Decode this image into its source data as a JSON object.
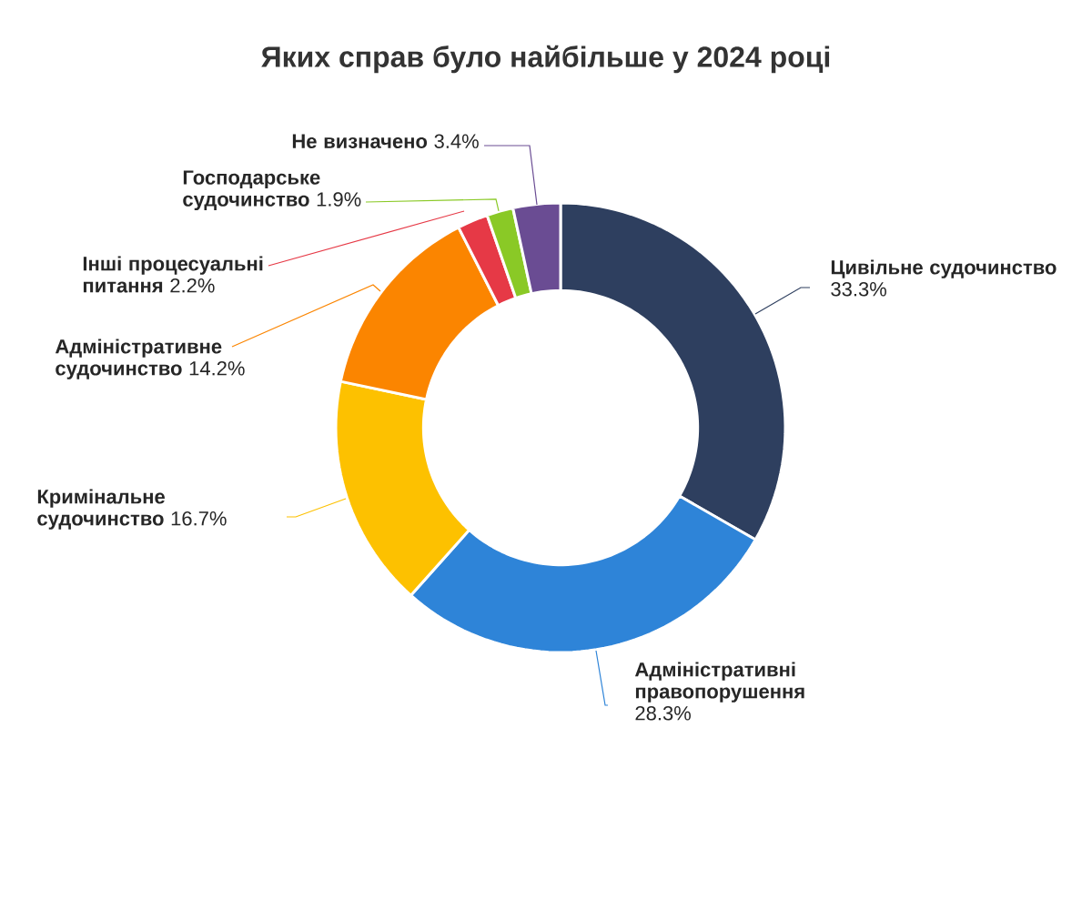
{
  "chart_data": {
    "type": "donut",
    "title": "Яких справ було найбільше у 2024 році",
    "categories": [
      "Цивільне судочинство",
      "Адміністративні правопорушення",
      "Кримінальне судочинство",
      "Адміністративне судочинство",
      "Інші процесуальні питання",
      "Господарське судочинство",
      "Не визначено"
    ],
    "values": [
      33.3,
      28.3,
      16.7,
      14.2,
      2.2,
      1.9,
      3.4
    ],
    "value_labels": [
      "33.3%",
      "28.3%",
      "16.7%",
      "14.2%",
      "2.2%",
      "1.9%",
      "3.4%"
    ],
    "colors": [
      "#2e3f5f",
      "#2e84d8",
      "#fdc100",
      "#fb8500",
      "#e63946",
      "#8ac926",
      "#6a4c93"
    ]
  }
}
